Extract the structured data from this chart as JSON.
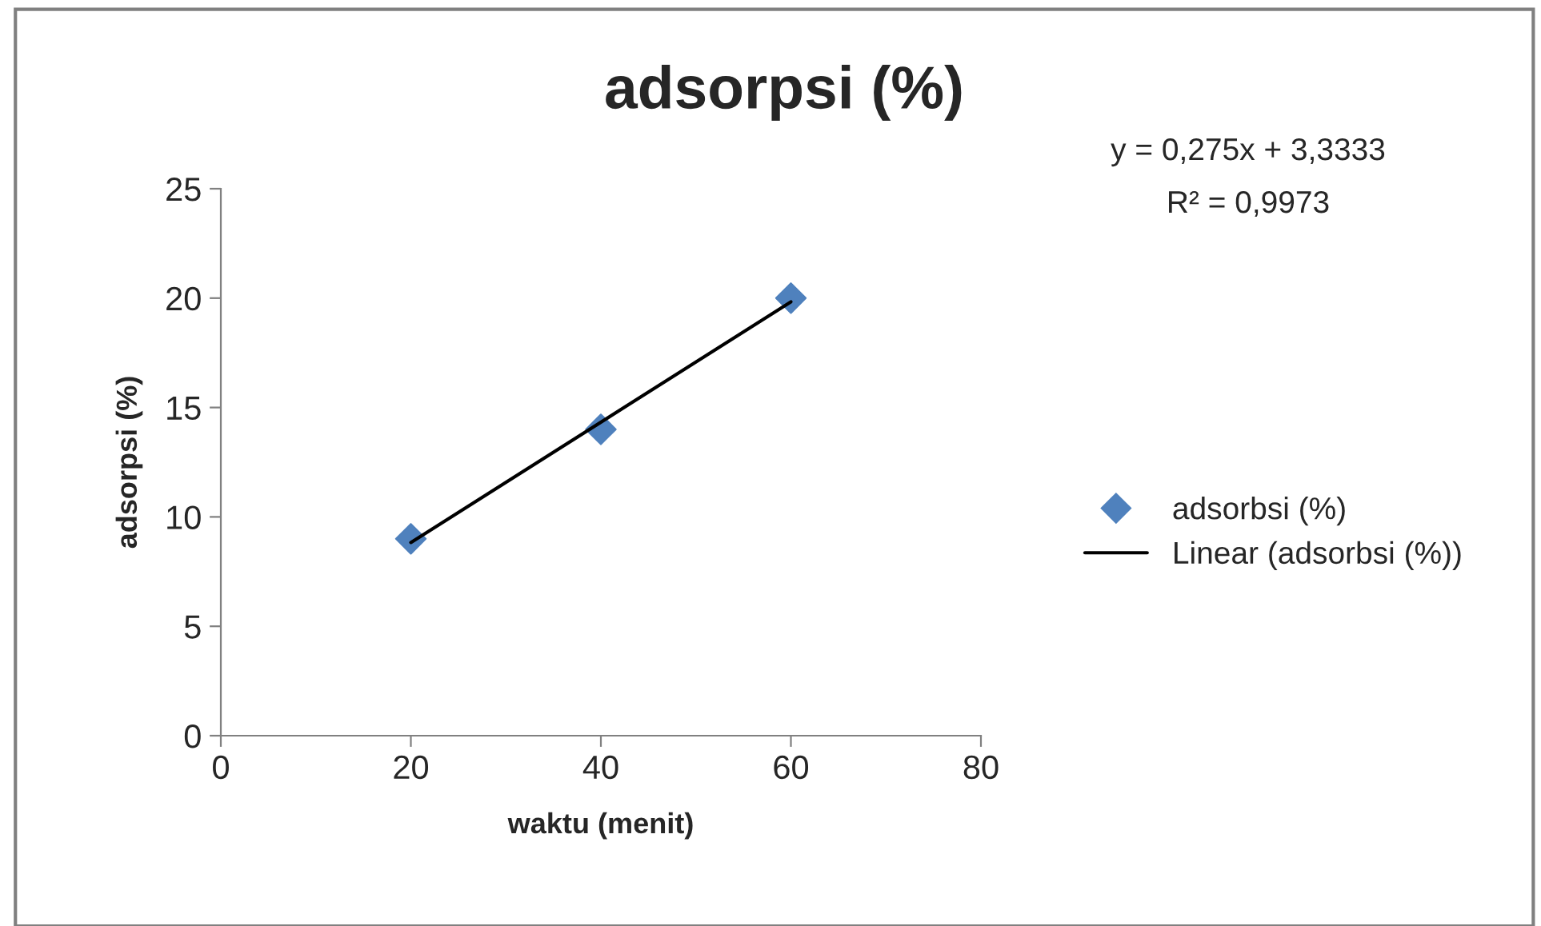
{
  "chart_data": {
    "type": "scatter",
    "title": "adsorpsi (%)",
    "xlabel": "waktu (menit)",
    "ylabel": "adsorpsi (%)",
    "x": [
      20,
      40,
      60
    ],
    "series": [
      {
        "name": "adsorbsi (%)",
        "color": "#4f81bd",
        "marker": "diamond",
        "values": [
          9,
          14,
          20
        ]
      },
      {
        "name": "Linear (adsorbsi (%))",
        "type": "line",
        "color": "#000000",
        "marker": "none",
        "line_style": "solid",
        "x": [
          20,
          60
        ],
        "values": [
          8.83,
          19.83
        ]
      }
    ],
    "xlim": [
      0,
      80
    ],
    "xticks": [
      0,
      20,
      40,
      60,
      80
    ],
    "ylim": [
      0,
      25
    ],
    "yticks": [
      0,
      5,
      10,
      15,
      20,
      25
    ],
    "grid": false,
    "legend": "right",
    "annotations": [
      "y = 0,275x + 3,3333",
      "R² = 0,9973"
    ]
  }
}
